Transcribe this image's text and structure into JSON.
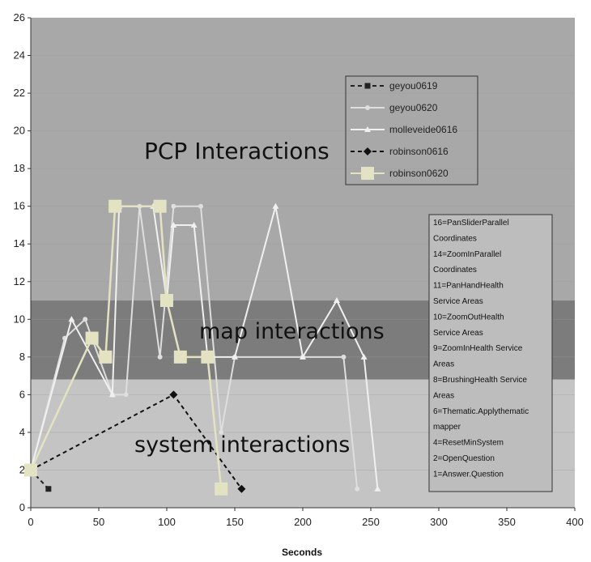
{
  "chart_data": {
    "type": "line",
    "title": "",
    "xlabel": "Seconds",
    "ylabel": "",
    "xlim": [
      0,
      400
    ],
    "ylim": [
      0,
      26
    ],
    "x_ticks": [
      0,
      50,
      100,
      150,
      200,
      250,
      300,
      350,
      400
    ],
    "y_ticks": [
      0,
      2,
      4,
      6,
      8,
      10,
      12,
      14,
      16,
      18,
      20,
      22,
      24,
      26
    ],
    "grid": "horizontal",
    "legend_position": "top-right",
    "bands": [
      {
        "label": "PCP Interactions",
        "y_from": 11,
        "y_to": 26,
        "color": "#a8a8a8"
      },
      {
        "label": "map interactions",
        "y_from": 6.8,
        "y_to": 11,
        "color": "#7c7c7c"
      },
      {
        "label": "system interactions",
        "y_from": 0,
        "y_to": 6.8,
        "color": "#c4c4c4"
      }
    ],
    "series": [
      {
        "name": "geyou0619",
        "color": "#222222",
        "dash": "5,4",
        "marker": "square",
        "points": [
          [
            0,
            2
          ],
          [
            13,
            1
          ]
        ]
      },
      {
        "name": "geyou0620",
        "color": "#dedede",
        "dash": "",
        "marker": "circle",
        "points": [
          [
            0,
            2
          ],
          [
            25,
            9
          ],
          [
            40,
            10
          ],
          [
            60,
            6
          ],
          [
            70,
            6
          ],
          [
            80,
            16
          ],
          [
            95,
            8
          ],
          [
            105,
            16
          ],
          [
            125,
            16
          ],
          [
            140,
            4
          ],
          [
            150,
            8
          ],
          [
            200,
            8
          ],
          [
            230,
            8
          ],
          [
            240,
            1
          ]
        ]
      },
      {
        "name": "molleveide0616",
        "color": "#f0f0f0",
        "dash": "",
        "marker": "triangle",
        "points": [
          [
            0,
            2
          ],
          [
            30,
            10
          ],
          [
            60,
            6
          ],
          [
            65,
            16
          ],
          [
            90,
            16
          ],
          [
            100,
            11
          ],
          [
            105,
            15
          ],
          [
            120,
            15
          ],
          [
            130,
            8
          ],
          [
            150,
            8
          ],
          [
            180,
            16
          ],
          [
            200,
            8
          ],
          [
            225,
            11
          ],
          [
            245,
            8
          ],
          [
            255,
            1
          ]
        ]
      },
      {
        "name": "robinson0616",
        "color": "#111111",
        "dash": "5,4",
        "marker": "diamond",
        "points": [
          [
            0,
            2
          ],
          [
            105,
            6
          ],
          [
            155,
            1
          ]
        ]
      },
      {
        "name": "robinson0620",
        "color": "#e3e3c3",
        "dash": "",
        "marker": "big-square",
        "points": [
          [
            0,
            2
          ],
          [
            45,
            9
          ],
          [
            55,
            8
          ],
          [
            62,
            16
          ],
          [
            95,
            16
          ],
          [
            100,
            11
          ],
          [
            110,
            8
          ],
          [
            130,
            8
          ],
          [
            140,
            1
          ]
        ]
      }
    ],
    "annotation_box": [
      "16=PanSliderParallel",
      "Coordinates",
      "14=ZoomInParallel",
      "Coordinates",
      "11=PanHandHealth",
      "Service Areas",
      "10=ZoomOutHealth",
      "Service Areas",
      "9=ZoomInHealth Service",
      "Areas",
      "8=BrushingHealth Service",
      "Areas",
      "6=Thematic.Applythematic",
      "mapper",
      "4=ResetMinSystem",
      "2=OpenQuestion",
      "1=Answer.Question"
    ]
  }
}
